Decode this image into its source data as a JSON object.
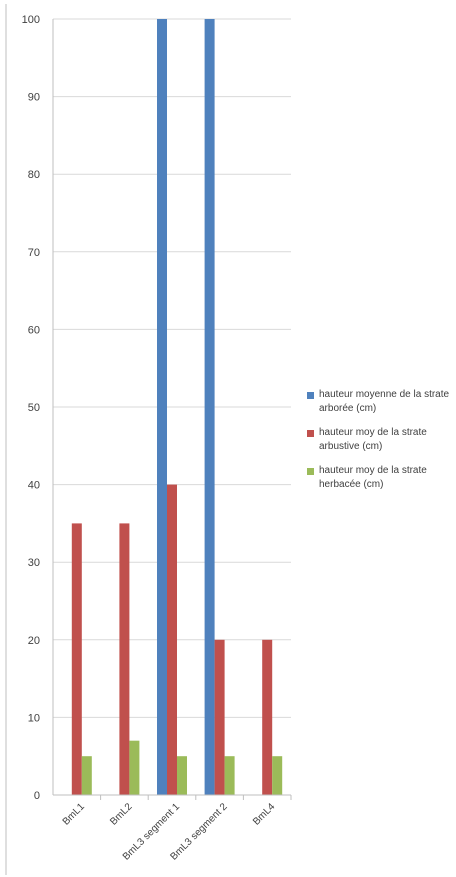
{
  "chart_data": {
    "type": "bar",
    "title": "",
    "xlabel": "",
    "ylabel": "",
    "ylim": [
      0,
      100
    ],
    "yticks": [
      0,
      10,
      20,
      30,
      40,
      50,
      60,
      70,
      80,
      90,
      100
    ],
    "grid": true,
    "legend_position": "right",
    "categories": [
      "BmL1",
      "BmL2",
      "BmL3 segment 1",
      "BmL3 segment 2",
      "BmL4"
    ],
    "series": [
      {
        "name": "hauteur moyenne de la strate arborée (cm)",
        "color": "#4F81BD",
        "values": [
          0,
          0,
          100,
          100,
          0
        ]
      },
      {
        "name": "hauteur moy de la strate arbustive (cm)",
        "color": "#C0504D",
        "values": [
          35,
          35,
          40,
          20,
          20
        ]
      },
      {
        "name": "hauteur moy de la strate herbacée (cm)",
        "color": "#9BBB59",
        "values": [
          5,
          7,
          5,
          5,
          5
        ]
      }
    ]
  }
}
